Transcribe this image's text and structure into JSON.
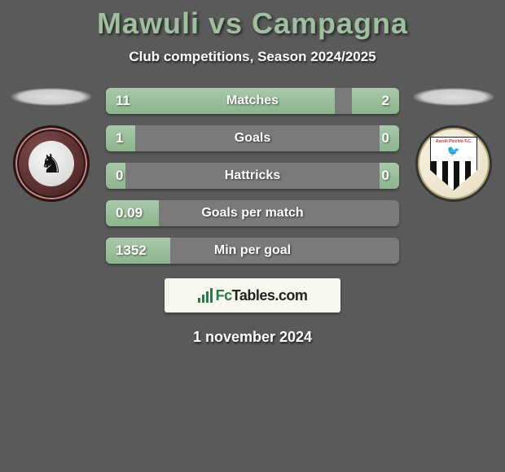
{
  "header": {
    "title": "Mawuli vs Campagna",
    "subtitle": "Club competitions, Season 2024/2025"
  },
  "stats": {
    "rows": [
      {
        "label": "Matches",
        "left_value": "11",
        "right_value": "2",
        "left_pct": 78,
        "right_pct": 16
      },
      {
        "label": "Goals",
        "left_value": "1",
        "right_value": "0",
        "left_pct": 10,
        "right_pct": 6
      },
      {
        "label": "Hattricks",
        "left_value": "0",
        "right_value": "0",
        "left_pct": 6,
        "right_pct": 6
      },
      {
        "label": "Goals per match",
        "left_value": "0.09",
        "right_value": "",
        "left_pct": 18,
        "right_pct": 0
      },
      {
        "label": "Min per goal",
        "left_value": "1352",
        "right_value": "",
        "left_pct": 22,
        "right_pct": 0
      }
    ],
    "bar_color": "#9cc29d",
    "track_color": "#7a7a7a",
    "text_color": "#ffffff"
  },
  "crests": {
    "left": {
      "name": "arezzo-crest",
      "glyph": "♞"
    },
    "right": {
      "name": "ascoli-crest",
      "shield_text": "Ascoli Picchio F.C.",
      "glyph": "🐦"
    }
  },
  "branding": {
    "text_prefix": "Fc",
    "text_suffix": "Tables.com"
  },
  "footer": {
    "date": "1 november 2024"
  },
  "colors": {
    "title": "#9fbf9f",
    "background": "#5a5a5a"
  }
}
